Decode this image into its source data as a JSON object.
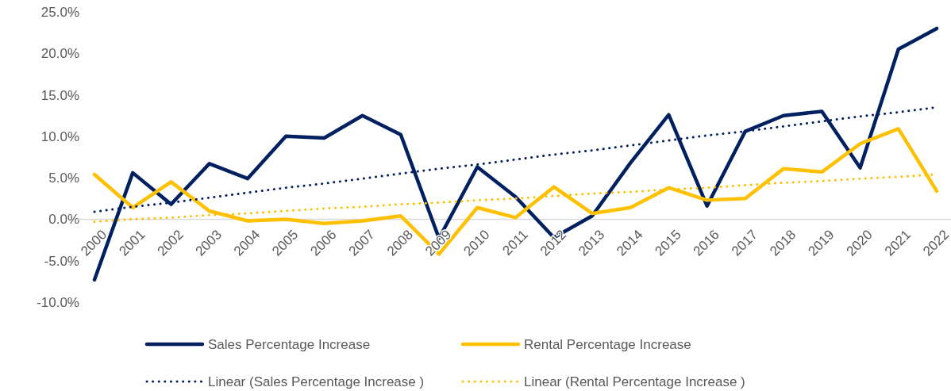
{
  "chart_data": {
    "type": "line",
    "categories": [
      "2000",
      "2001",
      "2002",
      "2003",
      "2004",
      "2005",
      "2006",
      "2007",
      "2008",
      "2009",
      "2010",
      "2011",
      "2012",
      "2013",
      "2014",
      "2015",
      "2016",
      "2017",
      "2018",
      "2019",
      "2020",
      "2021",
      "2022"
    ],
    "series": [
      {
        "name": "Sales Percentage Increase",
        "color": "#002060",
        "values": [
          -7.3,
          5.6,
          1.8,
          6.7,
          4.9,
          10.0,
          9.8,
          12.5,
          10.2,
          -2.3,
          6.3,
          2.7,
          -2.2,
          0.4,
          6.8,
          12.6,
          1.6,
          10.6,
          12.5,
          13.0,
          6.2,
          20.5,
          23.0
        ]
      },
      {
        "name": "Rental Percentage Increase",
        "color": "#ffc000",
        "values": [
          5.4,
          1.4,
          4.5,
          1.0,
          -0.2,
          0.0,
          -0.5,
          -0.2,
          0.4,
          -4.2,
          1.4,
          0.2,
          3.9,
          0.7,
          1.4,
          3.8,
          2.3,
          2.5,
          6.1,
          5.7,
          9.1,
          10.9,
          3.4
        ]
      },
      {
        "name": "Linear (Sales Percentage Increase )",
        "type": "line",
        "line_style": "dotted",
        "color": "#002060",
        "values": [
          0.9,
          1.5,
          2.0,
          2.6,
          3.2,
          3.8,
          4.3,
          4.9,
          5.5,
          6.1,
          6.6,
          7.2,
          7.8,
          8.3,
          8.9,
          9.5,
          10.1,
          10.6,
          11.2,
          11.8,
          12.4,
          12.9,
          13.5
        ]
      },
      {
        "name": "Linear (Rental Percentage Increase )",
        "type": "line",
        "line_style": "dotted",
        "color": "#ffc000",
        "values": [
          -0.3,
          0.0,
          0.2,
          0.5,
          0.7,
          1.0,
          1.3,
          1.5,
          1.8,
          2.0,
          2.3,
          2.5,
          2.8,
          3.1,
          3.3,
          3.6,
          3.8,
          4.1,
          4.4,
          4.6,
          4.9,
          5.1,
          5.4
        ]
      }
    ],
    "ylim": [
      -10,
      25
    ],
    "yticks": [
      {
        "value": -10,
        "label": "-10.0%"
      },
      {
        "value": -5,
        "label": "-5.0%"
      },
      {
        "value": 0,
        "label": "0.0%"
      },
      {
        "value": 5,
        "label": "5.0%"
      },
      {
        "value": 10,
        "label": "10.0%"
      },
      {
        "value": 15,
        "label": "15.0%"
      },
      {
        "value": 20,
        "label": "20.0%"
      },
      {
        "value": 25,
        "label": "25.0%"
      }
    ],
    "grid": false,
    "legend": "bottom",
    "line_style": "solid",
    "marker": "none"
  }
}
